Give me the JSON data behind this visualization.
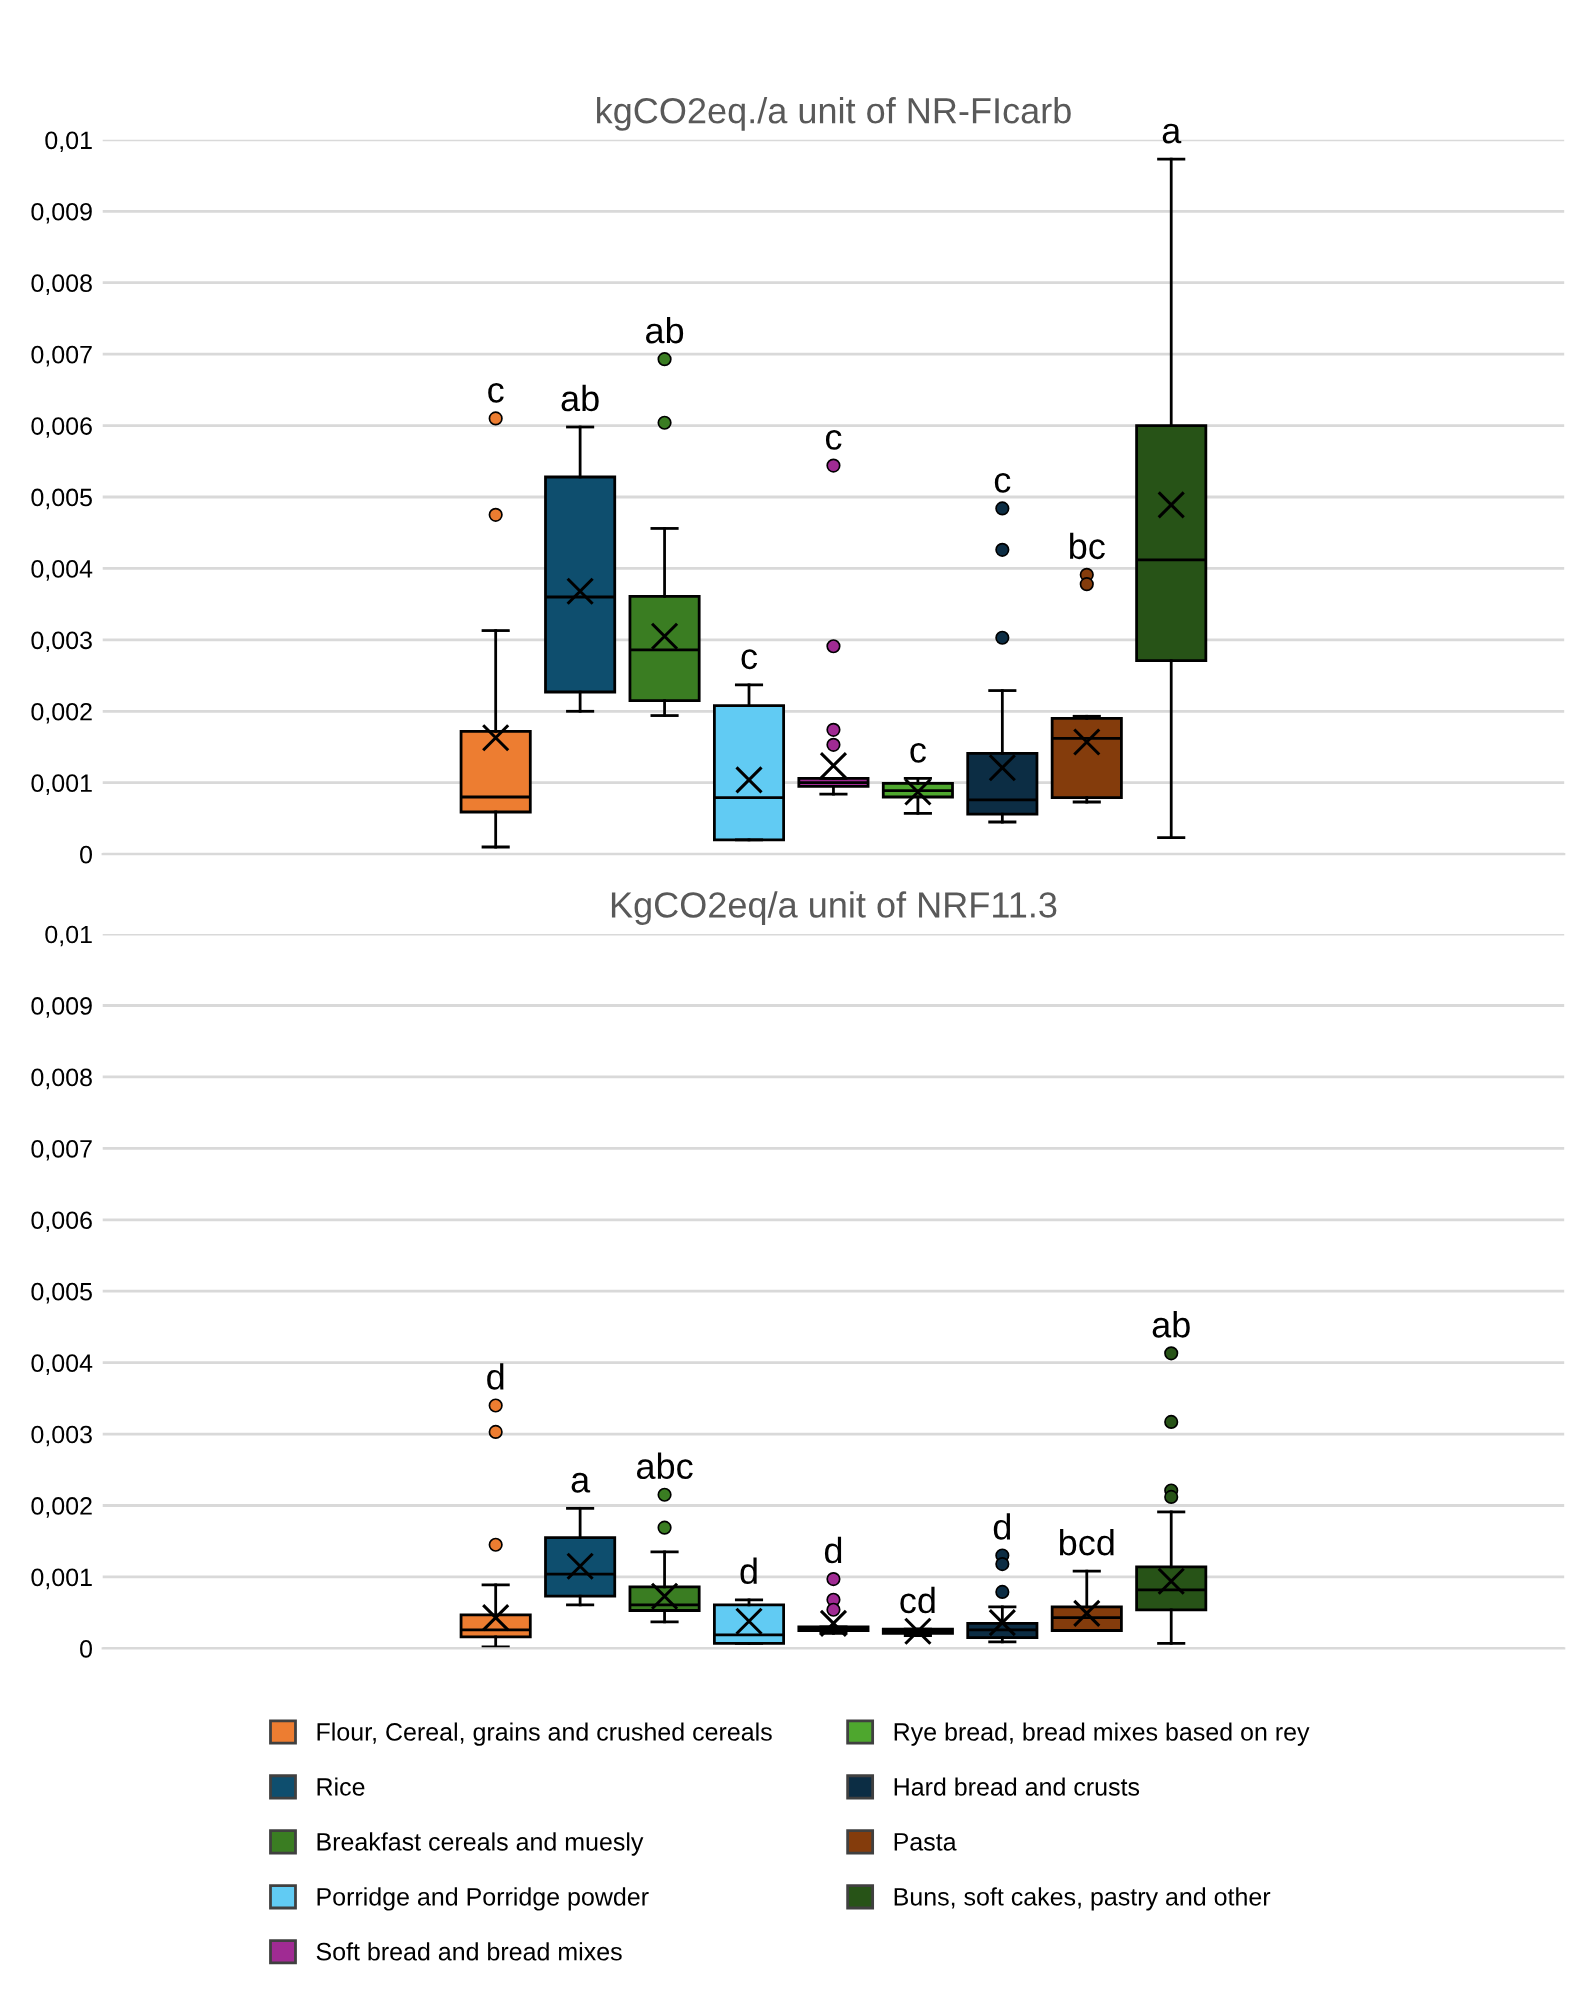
{
  "chart_data": [
    {
      "type": "box",
      "title": "kgCO2eq./a unit of NR-FIcarb",
      "categories": [
        null
      ],
      "ylim": [
        0,
        0.01
      ],
      "yticks": [
        0,
        {
          "value": 0.001,
          "label": "0,001"
        },
        {
          "value": 0.002,
          "label": "0,002"
        },
        {
          "value": 0.003,
          "label": "0,003"
        },
        {
          "value": 0.004,
          "label": "0,004"
        },
        {
          "value": 0.005,
          "label": "0,005"
        },
        {
          "value": 0.006,
          "label": "0,006"
        },
        {
          "value": 0.007,
          "label": "0,007"
        },
        {
          "value": 0.008,
          "label": "0,008"
        },
        {
          "value": 0.009,
          "label": "0,009"
        },
        {
          "value": 0.01,
          "label": "0,01"
        }
      ],
      "grid": "y",
      "tick_labels": "y",
      "annotations": [
        "c",
        "ab",
        "ab",
        "c",
        "c",
        "c",
        "c",
        "bc",
        "a"
      ],
      "series": [
        {
          "color": "#ed7d31",
          "boxes": [
            {
              "low": 0.0001,
              "q1": 0.00059,
              "median": 0.0008,
              "q3": 0.00172,
              "high": 0.00313,
              "mean": 0.00163,
              "outliers": [
                0.0061,
                0.00475
              ]
            }
          ]
        },
        {
          "color": "#0e4e6e",
          "boxes": [
            {
              "low": 0.002,
              "q1": 0.00227,
              "median": 0.0036,
              "q3": 0.00528,
              "high": 0.00598,
              "mean": 0.00368
            }
          ]
        },
        {
          "color": "#3a7d22",
          "boxes": [
            {
              "low": 0.00194,
              "q1": 0.00215,
              "median": 0.00286,
              "q3": 0.00361,
              "high": 0.00456,
              "mean": 0.00305,
              "outliers": [
                0.00693,
                0.00604
              ]
            }
          ]
        },
        {
          "color": "#61cbf3",
          "boxes": [
            {
              "low": 0.0002,
              "q1": 0.0002,
              "median": 0.00079,
              "q3": 0.00208,
              "high": 0.00237,
              "mean": 0.00104
            }
          ]
        },
        {
          "color": "#a02b93",
          "boxes": [
            {
              "low": 0.00084,
              "q1": 0.00095,
              "median": 0.001,
              "q3": 0.00106,
              "high": 0.00106,
              "mean": 0.00124,
              "outliers": [
                0.00544,
                0.00291,
                0.00174,
                0.00153
              ]
            }
          ]
        },
        {
          "color": "#4ea72e",
          "boxes": [
            {
              "low": 0.00057,
              "q1": 0.0008,
              "median": 0.00089,
              "q3": 0.00099,
              "high": 0.00106,
              "mean": 0.00087
            }
          ]
        },
        {
          "color": "#0c2d44",
          "boxes": [
            {
              "low": 0.00045,
              "q1": 0.00056,
              "median": 0.00076,
              "q3": 0.00141,
              "high": 0.00229,
              "mean": 0.00121,
              "outliers": [
                0.00484,
                0.00426,
                0.00303
              ]
            }
          ]
        },
        {
          "color": "#843c0c",
          "boxes": [
            {
              "low": 0.00073,
              "q1": 0.00079,
              "median": 0.00162,
              "q3": 0.0019,
              "high": 0.00193,
              "mean": 0.00157,
              "outliers": [
                0.00391,
                0.00378
              ]
            }
          ]
        },
        {
          "color": "#275317",
          "boxes": [
            {
              "low": 0.00023,
              "q1": 0.00271,
              "median": 0.00412,
              "q3": 0.006,
              "high": 0.00973,
              "mean": 0.00489
            }
          ]
        }
      ]
    },
    {
      "type": "box",
      "title": "KgCO2eq/a unit of NRF11.3",
      "categories": [
        null
      ],
      "ylim": [
        0,
        0.01
      ],
      "yticks": [
        0,
        {
          "value": 0.001,
          "label": "0,001"
        },
        {
          "value": 0.002,
          "label": "0,002"
        },
        {
          "value": 0.003,
          "label": "0,003"
        },
        {
          "value": 0.004,
          "label": "0,004"
        },
        {
          "value": 0.005,
          "label": "0,005"
        },
        {
          "value": 0.006,
          "label": "0,006"
        },
        {
          "value": 0.007,
          "label": "0,007"
        },
        {
          "value": 0.008,
          "label": "0,008"
        },
        {
          "value": 0.009,
          "label": "0,009"
        },
        {
          "value": 0.01,
          "label": "0,01"
        }
      ],
      "grid": "y",
      "tick_labels": "y",
      "legend": "bottom",
      "annotations": [
        "d",
        "a",
        "abc",
        "d",
        "d",
        "cd",
        "d",
        "bcd",
        "ab"
      ],
      "series": [
        {
          "name": "Flour, Cereal, grains and crushed cereals",
          "color": "#ed7d31",
          "boxes": [
            {
              "low": 2e-05,
              "q1": 0.00016,
              "median": 0.00026,
              "q3": 0.00047,
              "high": 0.00089,
              "mean": 0.00043,
              "outliers": [
                0.0034,
                0.00303,
                0.00145
              ]
            }
          ]
        },
        {
          "name": "Rice",
          "color": "#0e4e6e",
          "boxes": [
            {
              "low": 0.00061,
              "q1": 0.00073,
              "median": 0.00104,
              "q3": 0.00155,
              "high": 0.00196,
              "mean": 0.00115
            }
          ]
        },
        {
          "name": "Breakfast cereals and muesly",
          "color": "#3a7d22",
          "boxes": [
            {
              "low": 0.00037,
              "q1": 0.00053,
              "median": 0.00061,
              "q3": 0.00086,
              "high": 0.00135,
              "mean": 0.00073,
              "outliers": [
                0.00215,
                0.00169
              ]
            }
          ]
        },
        {
          "name": "Porridge and Porridge powder",
          "color": "#61cbf3",
          "boxes": [
            {
              "low": 7e-05,
              "q1": 7e-05,
              "median": 0.00019,
              "q3": 0.00061,
              "high": 0.00068,
              "mean": 0.00038
            }
          ]
        },
        {
          "name": "Soft bread and bread mixes",
          "color": "#a02b93",
          "boxes": [
            {
              "low": 0.00021,
              "q1": 0.00025,
              "median": 0.00027,
              "q3": 0.0003,
              "high": 0.0003,
              "mean": 0.00035,
              "outliers": [
                0.00097,
                0.00068,
                0.00054
              ]
            }
          ]
        },
        {
          "name": "Rye bread, bread mixes based on rey",
          "color": "#4ea72e",
          "boxes": [
            {
              "low": 0.00018,
              "q1": 0.00021,
              "median": 0.00024,
              "q3": 0.00027,
              "high": 0.00027,
              "mean": 0.00024
            }
          ]
        },
        {
          "name": "Hard bread and crusts",
          "color": "#0c2d44",
          "boxes": [
            {
              "low": 9e-05,
              "q1": 0.00015,
              "median": 0.00026,
              "q3": 0.00035,
              "high": 0.00058,
              "mean": 0.00036,
              "outliers": [
                0.0013,
                0.00118,
                0.00079
              ]
            }
          ]
        },
        {
          "name": "Pasta",
          "color": "#843c0c",
          "boxes": [
            {
              "low": 0.00025,
              "q1": 0.00025,
              "median": 0.00043,
              "q3": 0.00058,
              "high": 0.00108,
              "mean": 0.00049
            }
          ]
        },
        {
          "name": "Buns, soft cakes, pastry and other",
          "color": "#275317",
          "boxes": [
            {
              "low": 7e-05,
              "q1": 0.00054,
              "median": 0.00082,
              "q3": 0.00114,
              "high": 0.00191,
              "mean": 0.00094,
              "outliers": [
                0.00413,
                0.00317,
                0.00221,
                0.00212
              ]
            }
          ]
        }
      ]
    }
  ]
}
